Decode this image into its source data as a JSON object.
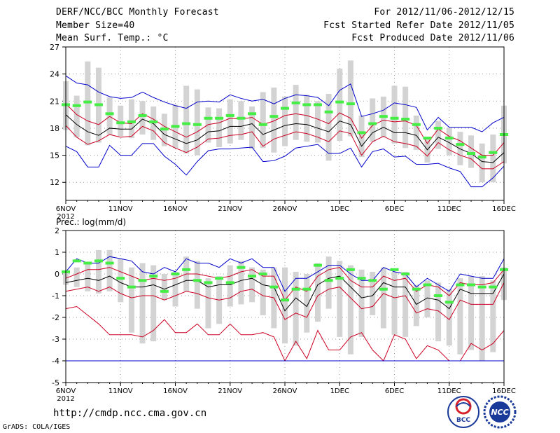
{
  "header": {
    "title": "DERF/NCC/BCC Monthly Forecast",
    "member_size": "Member Size=40",
    "variable": "Mean Surf. Temp.: °C",
    "forecast_range": "For 2012/11/06-2012/12/15",
    "started_date": "Fcst Started Refer Date 2012/11/05",
    "produced_date": "Fcst Produced Date 2012/11/06"
  },
  "footer": {
    "url": "http://cmdp.ncc.cma.gov.cn",
    "grads_credit": "GrADS: COLA/IGES",
    "logo1_text": "BCC",
    "logo2_text": "NCC"
  },
  "colors": {
    "max_line": "#0000cc",
    "quartile_line": "#cc0022",
    "mean_line": "#000000",
    "box": "#d3d3d3",
    "obs_marker": "#44ee44"
  },
  "chart_data": [
    {
      "type": "box-line",
      "title": "Mean Surf. Temp.: °C",
      "ylim": [
        10,
        27
      ],
      "yticks": [
        12,
        15,
        18,
        21,
        24,
        27
      ],
      "xlim": [
        0,
        40
      ],
      "xticks": [
        {
          "x": 0,
          "label": "6NOV",
          "sub": "2012"
        },
        {
          "x": 5,
          "label": "11NOV"
        },
        {
          "x": 10,
          "label": "16NOV"
        },
        {
          "x": 15,
          "label": "21NOV"
        },
        {
          "x": 20,
          "label": "26NOV"
        },
        {
          "x": 25,
          "label": "1DEC"
        },
        {
          "x": 30,
          "label": "6DEC"
        },
        {
          "x": 35,
          "label": "11DEC"
        },
        {
          "x": 40,
          "label": "16DEC"
        }
      ],
      "grid": true,
      "series": [
        {
          "name": "max",
          "color": "blue",
          "values": [
            23.8,
            23.0,
            22.8,
            22.0,
            21.5,
            21.3,
            21.4,
            22.0,
            21.4,
            20.9,
            20.5,
            20.2,
            20.9,
            21.0,
            20.9,
            21.7,
            21.3,
            21.0,
            21.2,
            20.7,
            21.3,
            21.7,
            21.6,
            21.4,
            20.5,
            22.2,
            22.9,
            19.3,
            19.6,
            20.0,
            20.8,
            20.6,
            20.3,
            17.8,
            19.2,
            18.1,
            18.1,
            18.1,
            17.6,
            18.6,
            19.2
          ]
        },
        {
          "name": "upper",
          "color": "red",
          "values": [
            20.7,
            19.5,
            18.8,
            18.4,
            19.3,
            18.6,
            18.5,
            19.6,
            19.0,
            18.2,
            17.6,
            17.0,
            17.6,
            18.4,
            18.6,
            19.1,
            19.0,
            19.2,
            18.4,
            18.8,
            19.4,
            19.6,
            19.4,
            19.0,
            18.5,
            19.7,
            19.1,
            16.9,
            18.3,
            18.9,
            18.7,
            18.8,
            18.3,
            16.3,
            17.9,
            17.1,
            16.6,
            15.8,
            15.0,
            15.0,
            16.4
          ]
        },
        {
          "name": "mean",
          "color": "black",
          "values": [
            19.5,
            18.4,
            17.6,
            17.2,
            18.0,
            17.9,
            17.9,
            19.0,
            18.5,
            17.3,
            16.8,
            16.3,
            16.7,
            17.6,
            17.7,
            18.2,
            18.2,
            18.5,
            17.3,
            17.8,
            18.3,
            18.5,
            18.4,
            18.0,
            17.6,
            18.8,
            18.4,
            16.0,
            17.5,
            18.1,
            17.5,
            17.5,
            17.2,
            15.6,
            17.0,
            16.4,
            15.7,
            15.2,
            14.3,
            14.2,
            15.3
          ]
        },
        {
          "name": "lower",
          "color": "red",
          "values": [
            18.3,
            17.0,
            16.2,
            16.6,
            17.3,
            17.0,
            17.1,
            18.2,
            17.7,
            16.4,
            15.8,
            15.3,
            15.9,
            16.8,
            16.9,
            17.2,
            17.3,
            17.6,
            16.0,
            16.8,
            17.2,
            17.6,
            17.4,
            17.0,
            16.5,
            17.7,
            17.4,
            15.0,
            16.5,
            17.1,
            16.5,
            16.3,
            16.0,
            14.9,
            16.4,
            15.6,
            15.0,
            14.6,
            13.5,
            13.5,
            14.3
          ]
        },
        {
          "name": "min",
          "color": "blue",
          "values": [
            16.0,
            15.4,
            13.7,
            13.7,
            16.1,
            15.0,
            15.0,
            16.3,
            16.3,
            14.9,
            14.0,
            12.8,
            14.3,
            15.5,
            15.7,
            15.7,
            15.8,
            15.9,
            14.3,
            14.4,
            14.9,
            15.8,
            16.0,
            16.2,
            15.2,
            15.2,
            15.8,
            13.7,
            15.4,
            15.7,
            14.8,
            14.9,
            14.0,
            14.0,
            14.1,
            13.6,
            13.2,
            11.5,
            11.5,
            12.5,
            13.8
          ]
        },
        {
          "name": "box_low",
          "color": "lightgray",
          "values": [
            17.8,
            17.0,
            16.1,
            16.4,
            17.3,
            17.1,
            16.9,
            17.3,
            16.7,
            16.0,
            15.8,
            15.2,
            15.0,
            16.4,
            15.9,
            16.3,
            16.7,
            15.7,
            15.8,
            15.3,
            16.0,
            16.7,
            16.5,
            16.4,
            14.4,
            16.6,
            17.1,
            14.8,
            16.5,
            17.0,
            16.3,
            15.8,
            15.6,
            14.2,
            15.7,
            15.0,
            13.9,
            13.6,
            12.0,
            12.0,
            14.1
          ]
        },
        {
          "name": "box_high",
          "color": "lightgray",
          "values": [
            23.2,
            21.6,
            25.4,
            24.7,
            21.4,
            20.5,
            21.2,
            21.0,
            20.4,
            19.6,
            20.6,
            22.7,
            22.3,
            20.3,
            20.2,
            21.2,
            21.0,
            20.4,
            22.0,
            22.5,
            21.5,
            22.8,
            21.7,
            21.0,
            21.8,
            24.6,
            25.5,
            19.4,
            21.3,
            21.5,
            22.7,
            22.6,
            19.4,
            17.0,
            18.8,
            18.0,
            17.6,
            17.2,
            16.3,
            17.3,
            20.5
          ]
        },
        {
          "name": "observed",
          "color": "green",
          "values": [
            20.6,
            20.5,
            20.9,
            20.6,
            19.6,
            18.6,
            18.7,
            19.4,
            18.7,
            17.9,
            18.2,
            18.5,
            18.4,
            19.1,
            19.1,
            19.4,
            19.1,
            19.6,
            18.4,
            19.3,
            20.2,
            20.8,
            20.6,
            20.6,
            19.8,
            20.9,
            20.7,
            17.5,
            18.5,
            19.3,
            19.1,
            19.0,
            18.4,
            16.9,
            18.0,
            16.9,
            16.2,
            15.2,
            14.8,
            15.3,
            17.3
          ]
        }
      ]
    },
    {
      "type": "box-line",
      "title": "Prec.: log(mm/d)",
      "ylim": [
        -5,
        2
      ],
      "yticks": [
        -5,
        -4,
        -3,
        -2,
        -1,
        0,
        1,
        2
      ],
      "xlim": [
        0,
        40
      ],
      "xticks": [
        {
          "x": 0,
          "label": "6NOV",
          "sub": "2012"
        },
        {
          "x": 5,
          "label": "11NOV"
        },
        {
          "x": 10,
          "label": "16NOV"
        },
        {
          "x": 15,
          "label": "21NOV"
        },
        {
          "x": 20,
          "label": "26NOV"
        },
        {
          "x": 25,
          "label": "1DEC"
        },
        {
          "x": 30,
          "label": "6DEC"
        },
        {
          "x": 35,
          "label": "11DEC"
        },
        {
          "x": 40,
          "label": "16DEC"
        }
      ],
      "grid": true,
      "series": [
        {
          "name": "max",
          "color": "blue",
          "values": [
            0.1,
            0.7,
            0.5,
            0.5,
            0.8,
            0.7,
            0.6,
            0.1,
            0.0,
            0.3,
            0.1,
            0.7,
            0.5,
            0.5,
            0.3,
            0.7,
            0.5,
            0.7,
            0.3,
            0.3,
            -0.8,
            -0.2,
            -0.2,
            0.1,
            0.4,
            0.4,
            0.0,
            -0.3,
            -0.3,
            0.3,
            0.1,
            0.0,
            -0.6,
            -0.2,
            -0.5,
            -0.8,
            0.0,
            -0.1,
            -0.2,
            -0.2,
            0.7
          ]
        },
        {
          "name": "upper",
          "color": "red",
          "values": [
            -0.2,
            0.0,
            0.2,
            0.2,
            0.3,
            0.1,
            -0.1,
            -0.3,
            -0.2,
            -0.3,
            -0.2,
            0.0,
            0.0,
            -0.1,
            -0.2,
            -0.1,
            0.1,
            0.2,
            -0.1,
            -0.1,
            -1.2,
            -0.6,
            -0.8,
            -0.1,
            0.2,
            0.3,
            -0.3,
            -0.6,
            -0.6,
            -0.1,
            -0.3,
            -0.2,
            -0.8,
            -0.5,
            -0.6,
            -1.0,
            -0.4,
            -0.5,
            -0.5,
            -0.4,
            0.2
          ]
        },
        {
          "name": "mean",
          "color": "black",
          "values": [
            -0.4,
            -0.3,
            -0.2,
            -0.3,
            -0.1,
            -0.4,
            -0.6,
            -0.6,
            -0.5,
            -0.7,
            -0.5,
            -0.3,
            -0.3,
            -0.6,
            -0.5,
            -0.5,
            -0.3,
            -0.2,
            -0.5,
            -0.6,
            -1.7,
            -1.1,
            -1.5,
            -0.5,
            -0.2,
            -0.1,
            -0.6,
            -1.1,
            -1.0,
            -0.4,
            -0.6,
            -0.6,
            -1.4,
            -1.1,
            -1.2,
            -1.6,
            -0.7,
            -0.9,
            -0.9,
            -0.9,
            0.0
          ]
        },
        {
          "name": "lower",
          "color": "red",
          "values": [
            -0.8,
            -0.7,
            -0.6,
            -0.8,
            -0.6,
            -0.9,
            -1.1,
            -1.0,
            -1.0,
            -1.2,
            -1.0,
            -0.8,
            -0.9,
            -1.1,
            -1.2,
            -1.1,
            -0.8,
            -0.7,
            -1.0,
            -1.1,
            -2.1,
            -1.8,
            -2.0,
            -1.0,
            -0.7,
            -0.6,
            -1.1,
            -1.6,
            -1.5,
            -0.9,
            -1.1,
            -1.0,
            -1.8,
            -1.6,
            -1.7,
            -2.1,
            -1.2,
            -1.4,
            -1.4,
            -1.4,
            -0.4
          ]
        },
        {
          "name": "min_line",
          "color": "red",
          "values": [
            -1.6,
            -1.5,
            -1.9,
            -2.3,
            -2.8,
            -2.8,
            -2.8,
            -2.9,
            -2.6,
            -2.1,
            -2.7,
            -2.7,
            -2.3,
            -2.8,
            -2.8,
            -2.3,
            -2.8,
            -2.8,
            -2.7,
            -2.9,
            -4.0,
            -3.1,
            -3.9,
            -2.6,
            -3.5,
            -3.5,
            -2.9,
            -2.7,
            -3.5,
            -4.0,
            -2.8,
            -3.0,
            -3.9,
            -3.3,
            -3.5,
            -4.0,
            -4.0,
            -3.2,
            -3.5,
            -3.2,
            -2.6
          ]
        },
        {
          "name": "min",
          "color": "blue",
          "values": [
            -4,
            -4,
            -4,
            -4,
            -4,
            -4,
            -4,
            -4,
            -4,
            -4,
            -4,
            -4,
            -4,
            -4,
            -4,
            -4,
            -4,
            -4,
            -4,
            -4,
            -4,
            -4,
            -4,
            -4,
            -4,
            -4,
            -4,
            -4,
            -4,
            -4,
            -4,
            -4,
            -4,
            -4,
            -4,
            -4,
            -4,
            -4,
            -4,
            -4,
            -4
          ]
        },
        {
          "name": "box_low",
          "color": "lightgray",
          "values": [
            -0.5,
            -0.6,
            -0.8,
            -0.9,
            -0.8,
            -1.3,
            -2.7,
            -3.2,
            -3.1,
            -1.2,
            -1.5,
            -0.8,
            -1.6,
            -2.5,
            -2.3,
            -1.5,
            -1.4,
            -1.3,
            -1.9,
            -2.5,
            -3.2,
            -3.3,
            -2.7,
            -2.2,
            -1.6,
            -2.9,
            -3.7,
            -2.9,
            -1.9,
            -2.5,
            -2.8,
            -2.9,
            -2.4,
            -2.0,
            -3.1,
            -3.3,
            -3.7,
            -3.5,
            -4.0,
            -3.6,
            -1.2
          ]
        },
        {
          "name": "box_high",
          "color": "lightgray",
          "values": [
            0.1,
            0.3,
            0.5,
            1.1,
            1.1,
            0.7,
            0.3,
            0.5,
            0.4,
            0.0,
            0.1,
            0.8,
            0.6,
            -0.2,
            -0.1,
            0.4,
            0.6,
            0.3,
            0.2,
            0.3,
            0.3,
            0.1,
            0.0,
            0.5,
            0.8,
            0.6,
            0.4,
            0.2,
            0.1,
            0.3,
            0.1,
            0.1,
            -0.5,
            -0.3,
            -0.4,
            -0.7,
            -0.2,
            -0.1,
            -0.1,
            -0.3,
            0.3
          ]
        },
        {
          "name": "observed",
          "color": "green",
          "values": [
            0.1,
            0.6,
            0.5,
            0.6,
            0.5,
            -0.2,
            -0.6,
            -0.3,
            -0.1,
            -0.8,
            0.0,
            0.2,
            -0.3,
            -0.4,
            -0.2,
            -0.4,
            0.3,
            -0.1,
            0.0,
            -0.6,
            -1.2,
            -0.7,
            -0.7,
            0.4,
            -0.3,
            -0.2,
            0.2,
            -0.2,
            -0.3,
            -0.7,
            0.2,
            0.0,
            -0.7,
            -0.5,
            -1.0,
            -1.3,
            -0.5,
            -0.5,
            -0.6,
            -0.6,
            0.2
          ]
        }
      ]
    }
  ]
}
